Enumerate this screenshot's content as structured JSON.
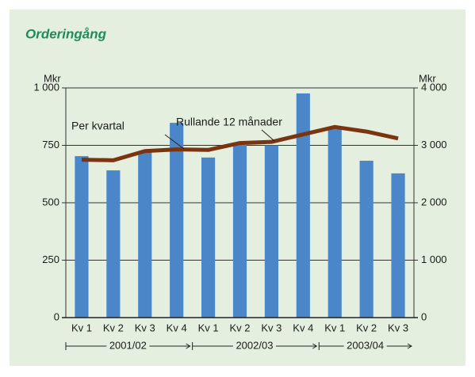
{
  "chart_data": {
    "type": "bar",
    "title": "Orderingång",
    "y_label": "Mkr",
    "y2_label": "Mkr",
    "categories": [
      "Kv 1",
      "Kv 2",
      "Kv 3",
      "Kv 4",
      "Kv 1",
      "Kv 2",
      "Kv 3",
      "Kv 4",
      "Kv 1",
      "Kv 2",
      "Kv 3"
    ],
    "x_groups": [
      "2001/02",
      "2002/03",
      "2003/04"
    ],
    "series": [
      {
        "name": "Per kvartal",
        "type": "bar",
        "color": "#4a86c8",
        "values": [
          703,
          641,
          720,
          848,
          697,
          752,
          750,
          976,
          821,
          683,
          628
        ]
      },
      {
        "name": "Rullande 12 månader",
        "type": "line",
        "axis": "y2",
        "color": "#7a3510",
        "values": [
          2750,
          2740,
          2900,
          2930,
          2920,
          3040,
          3060,
          3190,
          3320,
          3240,
          3120
        ]
      }
    ],
    "ylim": [
      0,
      1000
    ],
    "yticks": [
      0,
      250,
      500,
      750,
      {
        "value": 1000,
        "label": "1 000"
      }
    ],
    "y2lim": [
      0,
      4000
    ],
    "y2ticks": [
      0,
      {
        "value": 1000,
        "label": "1 000"
      },
      {
        "value": 2000,
        "label": "2 000"
      },
      {
        "value": 3000,
        "label": "3 000"
      },
      {
        "value": 4000,
        "label": "4 000"
      }
    ],
    "grid": true
  }
}
